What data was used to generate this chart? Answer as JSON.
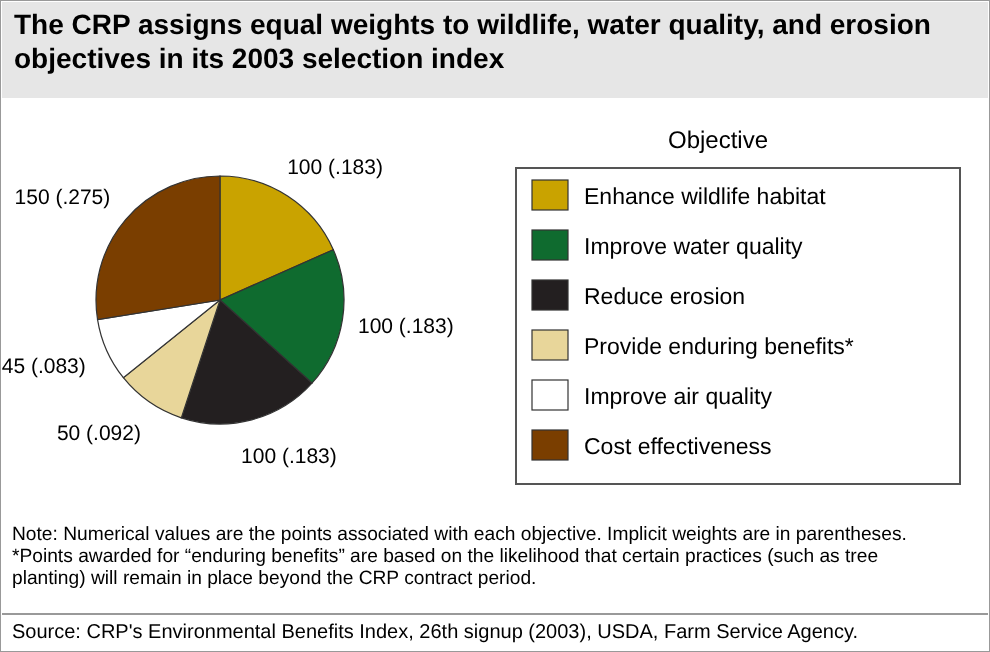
{
  "chart_data": {
    "type": "pie",
    "title": "The CRP assigns equal weights to wildlife, water quality, and erosion objectives in its 2003 selection index",
    "legend_title": "Objective",
    "legend": "right",
    "categories": [
      "Enhance wildlife habitat",
      "Improve water quality",
      "Reduce erosion",
      "Provide enduring benefits*",
      "Improve air quality",
      "Cost effectiveness"
    ],
    "values": [
      100,
      100,
      100,
      50,
      45,
      150
    ],
    "value_labels": [
      "100 (.183)",
      "100 (.183)",
      "100 (.183)",
      "50 (.092)",
      "45 (.083)",
      "150 (.275)"
    ],
    "colors": [
      "#c9a300",
      "#0f6b2f",
      "#231f20",
      "#e8d69a",
      "#ffffff",
      "#7a3e00"
    ],
    "annotations": [
      "Note: Numerical values are the points associated with each objective. Implicit weights are in parentheses.",
      "*Points awarded for “enduring benefits” are based on the likelihood that certain practices (such as tree planting) will remain in place beyond the CRP contract period.",
      "Source: CRP's Environmental Benefits Index, 26th signup (2003), USDA, Farm Service Agency."
    ]
  }
}
